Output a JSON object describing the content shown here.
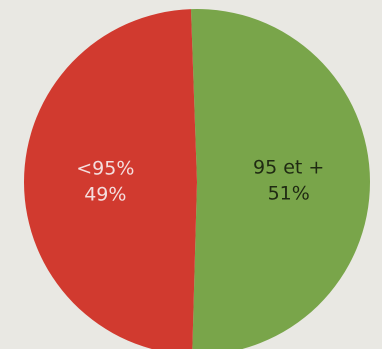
{
  "chart_data": {
    "type": "pie",
    "slices": [
      {
        "label": "95 et +",
        "value_label": "51%",
        "value": 51,
        "color": "#79a54a",
        "text_color": "#1f2a12"
      },
      {
        "label": "<95%",
        "value_label": "49%",
        "value": 49,
        "color": "#d13a2f",
        "text_color": "#f4dede"
      }
    ],
    "start_angle_deg": -2,
    "direction": "clockwise"
  }
}
